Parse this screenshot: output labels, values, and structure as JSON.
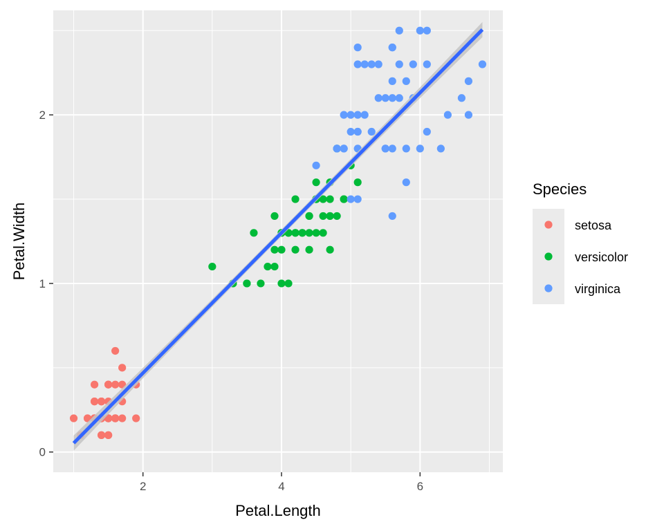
{
  "chart_data": {
    "type": "scatter",
    "xlabel": "Petal.Length",
    "ylabel": "Petal.Width",
    "xlim": [
      0.705,
      7.195
    ],
    "ylim": [
      -0.12,
      2.62
    ],
    "xticks": [
      2,
      4,
      6
    ],
    "yticks": [
      0,
      1,
      2
    ],
    "grid": true,
    "legend": {
      "title": "Species",
      "position": "right"
    },
    "series": [
      {
        "name": "setosa",
        "color": "#F8766D",
        "points": [
          [
            1.4,
            0.2
          ],
          [
            1.4,
            0.2
          ],
          [
            1.3,
            0.2
          ],
          [
            1.5,
            0.2
          ],
          [
            1.4,
            0.2
          ],
          [
            1.7,
            0.4
          ],
          [
            1.4,
            0.3
          ],
          [
            1.5,
            0.2
          ],
          [
            1.4,
            0.2
          ],
          [
            1.5,
            0.1
          ],
          [
            1.5,
            0.2
          ],
          [
            1.6,
            0.2
          ],
          [
            1.4,
            0.1
          ],
          [
            1.1,
            0.1
          ],
          [
            1.2,
            0.2
          ],
          [
            1.5,
            0.4
          ],
          [
            1.3,
            0.4
          ],
          [
            1.4,
            0.3
          ],
          [
            1.7,
            0.3
          ],
          [
            1.5,
            0.3
          ],
          [
            1.7,
            0.2
          ],
          [
            1.5,
            0.4
          ],
          [
            1.0,
            0.2
          ],
          [
            1.7,
            0.5
          ],
          [
            1.9,
            0.2
          ],
          [
            1.6,
            0.2
          ],
          [
            1.6,
            0.4
          ],
          [
            1.5,
            0.2
          ],
          [
            1.4,
            0.2
          ],
          [
            1.6,
            0.2
          ],
          [
            1.6,
            0.2
          ],
          [
            1.5,
            0.4
          ],
          [
            1.5,
            0.1
          ],
          [
            1.4,
            0.2
          ],
          [
            1.5,
            0.2
          ],
          [
            1.2,
            0.2
          ],
          [
            1.3,
            0.2
          ],
          [
            1.4,
            0.1
          ],
          [
            1.3,
            0.2
          ],
          [
            1.5,
            0.2
          ],
          [
            1.3,
            0.3
          ],
          [
            1.3,
            0.3
          ],
          [
            1.3,
            0.2
          ],
          [
            1.6,
            0.6
          ],
          [
            1.9,
            0.4
          ],
          [
            1.4,
            0.3
          ],
          [
            1.6,
            0.2
          ],
          [
            1.4,
            0.2
          ],
          [
            1.5,
            0.2
          ],
          [
            1.4,
            0.2
          ]
        ]
      },
      {
        "name": "versicolor",
        "color": "#00BA38",
        "points": [
          [
            4.7,
            1.4
          ],
          [
            4.5,
            1.5
          ],
          [
            4.9,
            1.5
          ],
          [
            4.0,
            1.3
          ],
          [
            4.6,
            1.5
          ],
          [
            4.5,
            1.3
          ],
          [
            4.7,
            1.6
          ],
          [
            3.3,
            1.0
          ],
          [
            4.6,
            1.3
          ],
          [
            3.9,
            1.4
          ],
          [
            3.5,
            1.0
          ],
          [
            4.2,
            1.5
          ],
          [
            4.0,
            1.0
          ],
          [
            4.7,
            1.4
          ],
          [
            3.6,
            1.3
          ],
          [
            4.4,
            1.4
          ],
          [
            4.5,
            1.5
          ],
          [
            4.1,
            1.0
          ],
          [
            4.5,
            1.5
          ],
          [
            3.9,
            1.1
          ],
          [
            4.8,
            1.8
          ],
          [
            4.0,
            1.3
          ],
          [
            4.9,
            1.5
          ],
          [
            4.7,
            1.2
          ],
          [
            4.3,
            1.3
          ],
          [
            4.4,
            1.4
          ],
          [
            4.8,
            1.4
          ],
          [
            5.0,
            1.7
          ],
          [
            4.5,
            1.5
          ],
          [
            3.5,
            1.0
          ],
          [
            3.8,
            1.1
          ],
          [
            3.7,
            1.0
          ],
          [
            3.9,
            1.2
          ],
          [
            5.1,
            1.6
          ],
          [
            4.5,
            1.5
          ],
          [
            4.5,
            1.6
          ],
          [
            4.7,
            1.5
          ],
          [
            4.4,
            1.3
          ],
          [
            4.1,
            1.3
          ],
          [
            4.0,
            1.3
          ],
          [
            4.4,
            1.2
          ],
          [
            4.6,
            1.4
          ],
          [
            4.0,
            1.2
          ],
          [
            3.3,
            1.0
          ],
          [
            4.2,
            1.3
          ],
          [
            4.2,
            1.2
          ],
          [
            4.2,
            1.3
          ],
          [
            4.3,
            1.3
          ],
          [
            3.0,
            1.1
          ],
          [
            4.1,
            1.3
          ]
        ]
      },
      {
        "name": "virginica",
        "color": "#619CFF",
        "points": [
          [
            6.0,
            2.5
          ],
          [
            5.1,
            1.9
          ],
          [
            5.9,
            2.1
          ],
          [
            5.6,
            1.8
          ],
          [
            5.8,
            2.2
          ],
          [
            6.6,
            2.1
          ],
          [
            4.5,
            1.7
          ],
          [
            6.3,
            1.8
          ],
          [
            5.8,
            1.8
          ],
          [
            6.1,
            2.5
          ],
          [
            5.1,
            2.0
          ],
          [
            5.3,
            1.9
          ],
          [
            5.5,
            2.1
          ],
          [
            5.0,
            2.0
          ],
          [
            5.1,
            2.4
          ],
          [
            5.3,
            2.3
          ],
          [
            5.5,
            1.8
          ],
          [
            6.7,
            2.2
          ],
          [
            6.9,
            2.3
          ],
          [
            5.0,
            1.5
          ],
          [
            5.7,
            2.3
          ],
          [
            4.9,
            2.0
          ],
          [
            6.7,
            2.0
          ],
          [
            4.9,
            1.8
          ],
          [
            5.7,
            2.1
          ],
          [
            6.0,
            1.8
          ],
          [
            4.8,
            1.8
          ],
          [
            4.9,
            1.8
          ],
          [
            5.6,
            2.1
          ],
          [
            5.8,
            1.6
          ],
          [
            6.1,
            1.9
          ],
          [
            6.4,
            2.0
          ],
          [
            5.6,
            2.2
          ],
          [
            5.1,
            1.5
          ],
          [
            5.6,
            1.4
          ],
          [
            6.1,
            2.3
          ],
          [
            5.6,
            2.4
          ],
          [
            5.5,
            1.8
          ],
          [
            4.8,
            1.8
          ],
          [
            5.4,
            2.1
          ],
          [
            5.6,
            2.4
          ],
          [
            5.1,
            2.3
          ],
          [
            5.1,
            1.9
          ],
          [
            5.9,
            2.3
          ],
          [
            5.7,
            2.5
          ],
          [
            5.2,
            2.3
          ],
          [
            5.0,
            1.9
          ],
          [
            5.2,
            2.0
          ],
          [
            5.4,
            2.3
          ],
          [
            5.1,
            1.8
          ]
        ]
      }
    ],
    "fit_line": {
      "method": "lm",
      "color": "#3366FF",
      "band_color": "#c4c4c4",
      "x": [
        1.0,
        6.9
      ],
      "intercept": -0.3631,
      "slope": 0.4158,
      "se_half_width_ends": 0.045,
      "se_half_width_mid": 0.02
    }
  },
  "colors": {
    "panel_background": "#EBEBEB",
    "grid": "#FFFFFF",
    "legend_key_background": "#EBEBEB"
  }
}
